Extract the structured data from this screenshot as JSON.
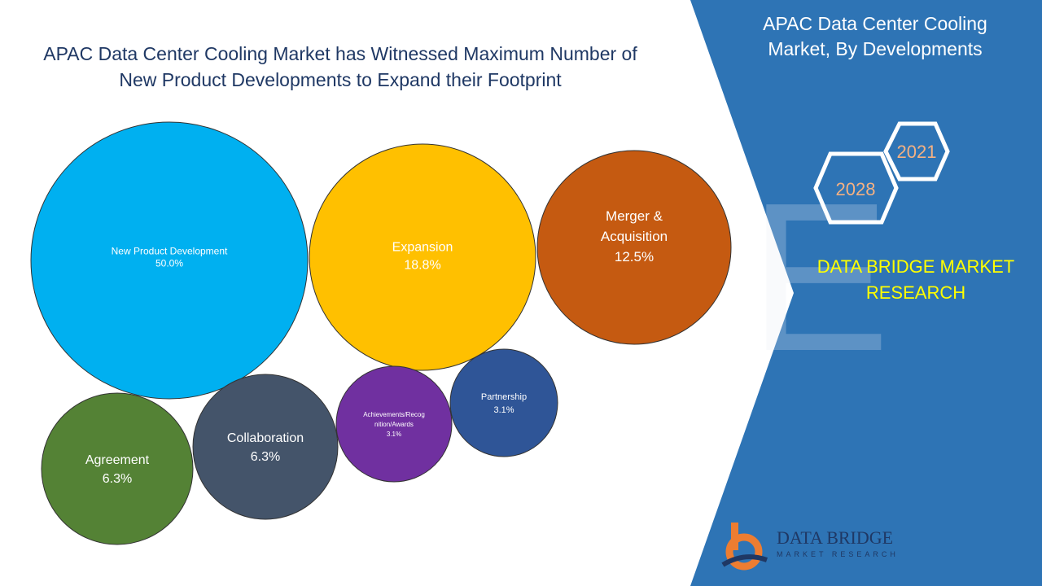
{
  "title_lines": [
    "APAC Data Center Cooling Market has Witnessed Maximum Number of",
    "New Product Developments to Expand their Footprint"
  ],
  "panel": {
    "title_lines": [
      "APAC Data Center Cooling",
      "Market, By Developments"
    ],
    "years": [
      "2021",
      "2028"
    ],
    "brand_lines": [
      "DATA BRIDGE MARKET",
      "RESEARCH"
    ]
  },
  "logo": {
    "name": "DATA BRIDGE",
    "subtitle": "MARKET RESEARCH"
  },
  "colors": {
    "panel_blue": "#2e74b5",
    "title_navy": "#1f3864",
    "brand_yellow": "#ffff00",
    "year_orange": "#f4b183"
  },
  "chart_data": {
    "type": "bubble",
    "items": [
      {
        "name_lines": [
          "New Product Development"
        ],
        "value": "50.0%",
        "color": "#00b0f0"
      },
      {
        "name_lines": [
          "Expansion"
        ],
        "value": "18.8%",
        "color": "#ffc000"
      },
      {
        "name_lines": [
          "Merger &",
          "Acquisition"
        ],
        "value": "12.5%",
        "color": "#c55a11"
      },
      {
        "name_lines": [
          "Agreement"
        ],
        "value": "6.3%",
        "color": "#548235"
      },
      {
        "name_lines": [
          "Collaboration"
        ],
        "value": "6.3%",
        "color": "#44546a"
      },
      {
        "name_lines": [
          "Achievements/Recog",
          "nition/Awards"
        ],
        "value": "3.1%",
        "color": "#7030a0"
      },
      {
        "name_lines": [
          "Partnership"
        ],
        "value": "3.1%",
        "color": "#2f5597"
      }
    ]
  }
}
